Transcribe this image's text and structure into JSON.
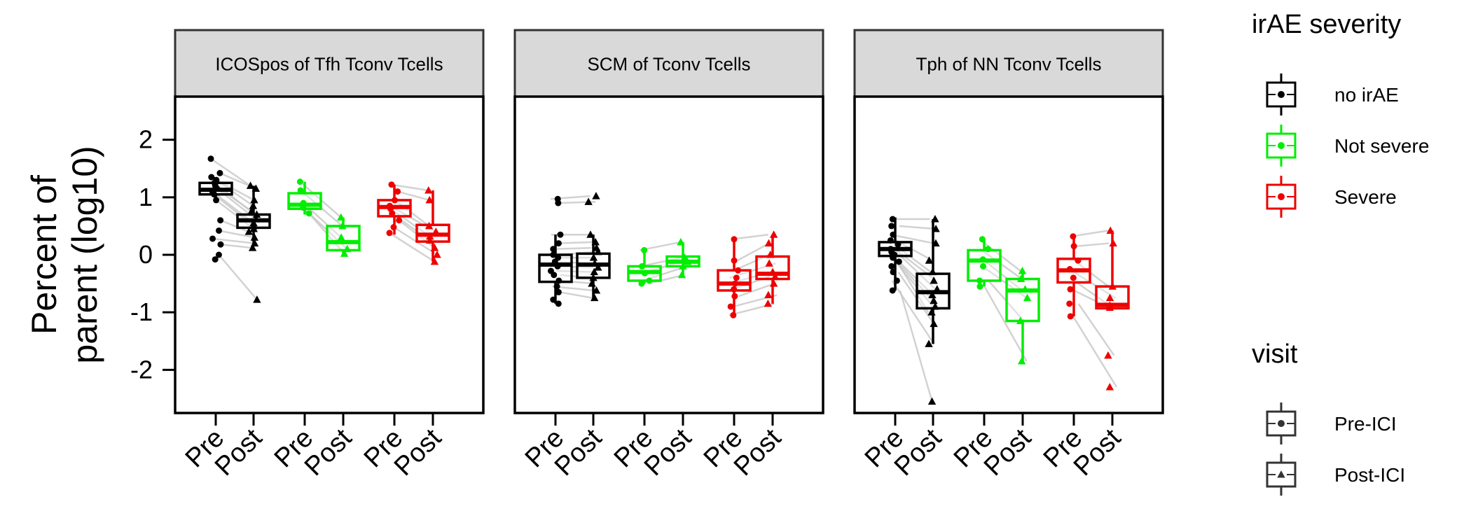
{
  "chart_data": {
    "type": "boxplot",
    "ylabel": [
      "Percent of",
      "parent (log10)"
    ],
    "y_ticks": [
      -2,
      -1,
      0,
      1,
      2
    ],
    "ylim": [
      -2.75,
      2.75
    ],
    "x_categories": [
      "Pre",
      "Post",
      "Pre",
      "Post",
      "Pre",
      "Post"
    ],
    "panels": [
      {
        "title": "ICOSpos of Tfh Tconv Tcells",
        "groups": [
          {
            "severity": "no irAE",
            "visit": "Pre",
            "box": {
              "q1": 1.05,
              "median": 1.13,
              "q3": 1.25,
              "whisker_low": 0.95,
              "whisker_high": 1.35
            },
            "points": [
              1.67,
              1.42,
              1.35,
              1.3,
              1.25,
              1.2,
              1.15,
              1.1,
              1.05,
              0.95,
              0.6,
              0.42,
              0.28,
              0.18,
              0.0,
              -0.08
            ]
          },
          {
            "severity": "no irAE",
            "visit": "Post",
            "box": {
              "q1": 0.47,
              "median": 0.6,
              "q3": 0.7,
              "whisker_low": 0.15,
              "whisker_high": 1.2
            },
            "points": [
              1.2,
              1.15,
              0.95,
              0.85,
              0.75,
              0.7,
              0.62,
              0.55,
              0.5,
              0.45,
              0.4,
              0.3,
              0.2,
              0.12,
              -0.78
            ]
          },
          {
            "severity": "Not severe",
            "visit": "Pre",
            "box": {
              "q1": 0.8,
              "median": 0.87,
              "q3": 1.07,
              "whisker_low": 0.7,
              "whisker_high": 1.27
            },
            "points": [
              1.27,
              1.12,
              0.9,
              0.82,
              0.72
            ]
          },
          {
            "severity": "Not severe",
            "visit": "Post",
            "box": {
              "q1": 0.08,
              "median": 0.22,
              "q3": 0.5,
              "whisker_low": 0.0,
              "whisker_high": 0.65
            },
            "points": [
              0.65,
              0.5,
              0.3,
              0.1,
              0.02
            ]
          },
          {
            "severity": "Severe",
            "visit": "Pre",
            "box": {
              "q1": 0.67,
              "median": 0.83,
              "q3": 0.95,
              "whisker_low": 0.35,
              "whisker_high": 1.22
            },
            "points": [
              1.22,
              1.1,
              0.95,
              0.85,
              0.8,
              0.72,
              0.6,
              0.48,
              0.38
            ]
          },
          {
            "severity": "Severe",
            "visit": "Post",
            "box": {
              "q1": 0.23,
              "median": 0.35,
              "q3": 0.52,
              "whisker_low": -0.12,
              "whisker_high": 1.12
            },
            "points": [
              1.12,
              0.95,
              0.5,
              0.4,
              0.32,
              0.25,
              0.12,
              0.0,
              -0.12
            ]
          }
        ]
      },
      {
        "title": "SCM of Tconv Tcells",
        "groups": [
          {
            "severity": "no irAE",
            "visit": "Pre",
            "box": {
              "q1": -0.47,
              "median": -0.17,
              "q3": 0.0,
              "whisker_low": -0.85,
              "whisker_high": 0.35
            },
            "points": [
              0.97,
              0.9,
              0.35,
              0.2,
              0.1,
              0.0,
              -0.05,
              -0.12,
              -0.2,
              -0.28,
              -0.35,
              -0.45,
              -0.55,
              -0.65,
              -0.78,
              -0.85
            ]
          },
          {
            "severity": "no irAE",
            "visit": "Post",
            "box": {
              "q1": -0.4,
              "median": -0.17,
              "q3": 0.02,
              "whisker_low": -0.75,
              "whisker_high": 0.35
            },
            "points": [
              1.02,
              0.92,
              0.35,
              0.22,
              0.12,
              0.05,
              -0.05,
              -0.15,
              -0.22,
              -0.3,
              -0.4,
              -0.5,
              -0.62,
              -0.75
            ]
          },
          {
            "severity": "Not severe",
            "visit": "Pre",
            "box": {
              "q1": -0.45,
              "median": -0.3,
              "q3": -0.2,
              "whisker_low": -0.5,
              "whisker_high": 0.08
            },
            "points": [
              0.08,
              -0.2,
              -0.32,
              -0.45,
              -0.5
            ]
          },
          {
            "severity": "Not severe",
            "visit": "Post",
            "box": {
              "q1": -0.2,
              "median": -0.12,
              "q3": -0.03,
              "whisker_low": -0.35,
              "whisker_high": 0.22
            },
            "points": [
              0.22,
              -0.05,
              -0.12,
              -0.2,
              -0.35
            ]
          },
          {
            "severity": "Severe",
            "visit": "Pre",
            "box": {
              "q1": -0.62,
              "median": -0.5,
              "q3": -0.27,
              "whisker_low": -1.05,
              "whisker_high": 0.27
            },
            "points": [
              0.27,
              -0.1,
              -0.27,
              -0.4,
              -0.5,
              -0.6,
              -0.72,
              -0.9,
              -1.05
            ]
          },
          {
            "severity": "Severe",
            "visit": "Post",
            "box": {
              "q1": -0.42,
              "median": -0.33,
              "q3": -0.03,
              "whisker_low": -0.85,
              "whisker_high": 0.35
            },
            "points": [
              0.35,
              0.2,
              0.0,
              -0.15,
              -0.3,
              -0.38,
              -0.5,
              -0.7,
              -0.85
            ]
          }
        ]
      },
      {
        "title": "Tph of NN Tconv Tcells",
        "groups": [
          {
            "severity": "no irAE",
            "visit": "Pre",
            "box": {
              "q1": -0.02,
              "median": 0.1,
              "q3": 0.22,
              "whisker_low": -0.62,
              "whisker_high": 0.65
            },
            "points": [
              0.62,
              0.5,
              0.35,
              0.25,
              0.18,
              0.1,
              0.05,
              0.0,
              -0.05,
              -0.12,
              -0.2,
              -0.3,
              -0.45,
              -0.62
            ]
          },
          {
            "severity": "no irAE",
            "visit": "Post",
            "box": {
              "q1": -0.93,
              "median": -0.65,
              "q3": -0.33,
              "whisker_low": -1.55,
              "whisker_high": 0.62
            },
            "points": [
              0.62,
              0.45,
              0.2,
              -0.1,
              -0.3,
              -0.45,
              -0.6,
              -0.7,
              -0.8,
              -0.9,
              -1.0,
              -1.2,
              -1.55,
              -2.55
            ]
          },
          {
            "severity": "Not severe",
            "visit": "Pre",
            "box": {
              "q1": -0.45,
              "median": -0.1,
              "q3": 0.08,
              "whisker_low": -0.55,
              "whisker_high": 0.27
            },
            "points": [
              0.27,
              0.1,
              -0.08,
              -0.2,
              -0.45,
              -0.55
            ]
          },
          {
            "severity": "Not severe",
            "visit": "Post",
            "box": {
              "q1": -1.15,
              "median": -0.62,
              "q3": -0.42,
              "whisker_low": -1.85,
              "whisker_high": -0.28
            },
            "points": [
              -0.28,
              -0.42,
              -0.6,
              -0.75,
              -1.15,
              -1.85
            ]
          },
          {
            "severity": "Severe",
            "visit": "Pre",
            "box": {
              "q1": -0.48,
              "median": -0.27,
              "q3": -0.07,
              "whisker_low": -1.07,
              "whisker_high": 0.32
            },
            "points": [
              0.32,
              0.15,
              -0.1,
              -0.25,
              -0.4,
              -0.6,
              -0.85,
              -1.07
            ]
          },
          {
            "severity": "Severe",
            "visit": "Post",
            "box": {
              "q1": -0.93,
              "median": -0.87,
              "q3": -0.55,
              "whisker_low": -0.95,
              "whisker_high": 0.42
            },
            "points": [
              0.42,
              0.2,
              -0.55,
              -0.75,
              -0.88,
              -0.92,
              -1.75,
              -2.3
            ]
          }
        ]
      }
    ],
    "legend": {
      "position": "right",
      "severity_title": "irAE severity",
      "severity_items": [
        {
          "label": "no irAE",
          "color": "#000000"
        },
        {
          "label": "Not severe",
          "color": "#00ee00"
        },
        {
          "label": "Severe",
          "color": "#ee0000"
        }
      ],
      "visit_title": "visit",
      "visit_items": [
        {
          "label": "Pre-ICI",
          "shape": "circle"
        },
        {
          "label": "Post-ICI",
          "shape": "triangle"
        }
      ]
    },
    "connector_color": "#c8c8c8",
    "grid": false
  }
}
